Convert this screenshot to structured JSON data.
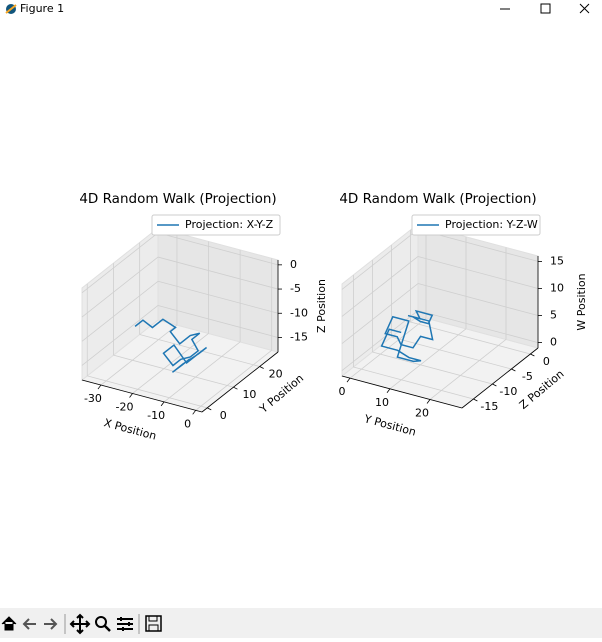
{
  "window": {
    "title": "Figure 1"
  },
  "chart_data": [
    {
      "type": "line3d",
      "title": "4D Random Walk (Projection)",
      "xlabel": "X Position",
      "ylabel": "Y Position",
      "zlabel": "Z Position",
      "series": [
        {
          "name": "Projection: X-Y-Z",
          "color": "#1f77b4",
          "x": [
            -25,
            -25,
            -22,
            -22,
            -18,
            -18,
            -15,
            -15,
            -12,
            -12,
            -10,
            -10,
            -13,
            -13,
            -16,
            -16,
            -12,
            -12,
            -9,
            -9,
            -14,
            -14,
            -11,
            -11
          ],
          "y": [
            5,
            8,
            8,
            12,
            12,
            10,
            10,
            14,
            14,
            11,
            11,
            8,
            8,
            5,
            5,
            9,
            9,
            13,
            13,
            10,
            10,
            6,
            6,
            9
          ],
          "z": [
            -8,
            -8,
            -9,
            -9,
            -10,
            -10,
            -12,
            -12,
            -11,
            -11,
            -13,
            -13,
            -14,
            -14,
            -12,
            -12,
            -15,
            -15,
            -13,
            -13,
            -16,
            -16,
            -14,
            -14
          ]
        }
      ],
      "xlim": [
        -36,
        2
      ],
      "ylim": [
        -2,
        27
      ],
      "zlim": [
        -18,
        1
      ],
      "xticks": [
        -30,
        -20,
        -10,
        0
      ],
      "yticks": [
        0,
        10,
        20
      ],
      "zticks": [
        0,
        -5,
        -10,
        -15
      ],
      "legend": "upper right",
      "grid": true
    },
    {
      "type": "line3d",
      "title": "4D Random Walk (Projection)",
      "xlabel": "Y Position",
      "ylabel": "Z Position",
      "zlabel": "W Position",
      "series": [
        {
          "name": "Projection: Y-Z-W",
          "color": "#1f77b4",
          "x": [
            5,
            8,
            8,
            12,
            12,
            10,
            10,
            14,
            14,
            11,
            11,
            8,
            8,
            5,
            5,
            9,
            9,
            13,
            13,
            10,
            10,
            6,
            6,
            9
          ],
          "y": [
            -8,
            -8,
            -9,
            -9,
            -10,
            -10,
            -12,
            -12,
            -11,
            -11,
            -13,
            -13,
            -14,
            -14,
            -12,
            -12,
            -15,
            -15,
            -13,
            -13,
            -16,
            -16,
            -14,
            -14
          ],
          "z": [
            6,
            6,
            8,
            8,
            7,
            7,
            9,
            9,
            5,
            5,
            4,
            4,
            6,
            6,
            8,
            8,
            3,
            3,
            2,
            2,
            5,
            5,
            7,
            7
          ]
        }
      ],
      "xlim": [
        -2,
        28
      ],
      "ylim": [
        -18,
        2
      ],
      "zlim": [
        -1,
        16
      ],
      "xticks": [
        0,
        10,
        20
      ],
      "yticks": [
        0,
        -5,
        -10,
        -15
      ],
      "zticks": [
        15,
        10,
        5,
        0
      ],
      "legend": "upper right",
      "grid": true
    }
  ]
}
